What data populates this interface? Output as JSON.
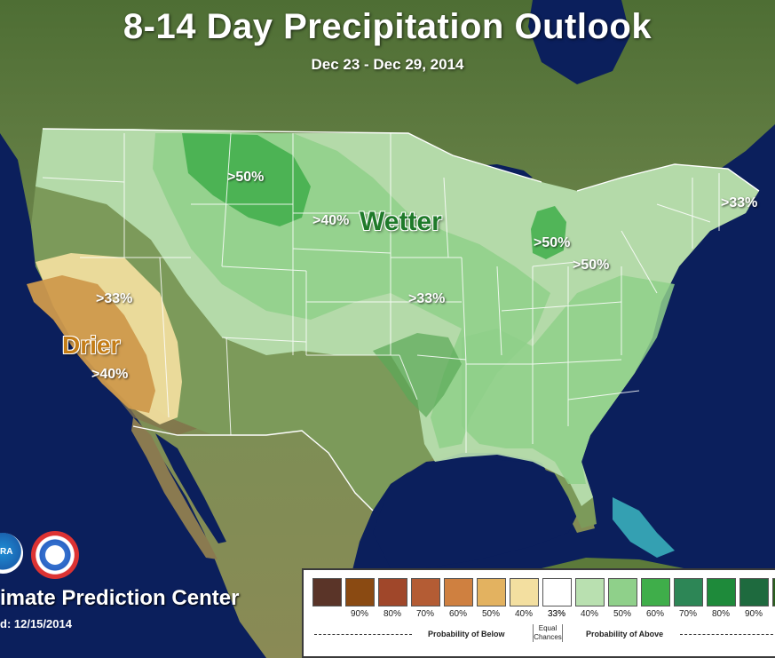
{
  "title": "8-14 Day Precipitation Outlook",
  "subtitle": "Dec 23 - Dec 29, 2014",
  "labels": {
    "wetter": "Wetter",
    "drier": "Drier",
    "nw_50": ">50%",
    "central_40": ">40%",
    "ne_33": ">33%",
    "mi_50": ">50%",
    "lakes_50": ">50%",
    "mid_33": ">33%",
    "ca_33": ">33%",
    "ca_40": ">40%"
  },
  "footer": {
    "center": "imate Prediction Center",
    "issued": "d: 12/15/2014",
    "logo_left": "RA"
  },
  "legend": {
    "below_ticks": [
      "90%",
      "80%",
      "70%",
      "60%",
      "50%",
      "40%",
      "33%"
    ],
    "above_ticks": [
      "33%",
      "40%",
      "50%",
      "60%",
      "70%",
      "80%",
      "90%"
    ],
    "below_label": "Probability of Below",
    "equal_label": "Equal Chances",
    "above_label": "Probability of Above",
    "below_colors": [
      "#5a3428",
      "#8a4a12",
      "#a0472a",
      "#b45c34",
      "#cf8040",
      "#e3b260",
      "#f3dfa0"
    ],
    "equal_color": "#ffffff",
    "above_colors": [
      "#b9e0b0",
      "#8fd08a",
      "#3fae4a",
      "#2d8656",
      "#1e8a3a",
      "#1e6a3e",
      "#2a5e1e"
    ]
  },
  "colors": {
    "ocean": "#0b1f5c",
    "land": "#6f8a4e",
    "wet_33": "#b9e0b0",
    "wet_40": "#8fd08a",
    "wet_50": "#3fae4a",
    "dry_33": "#f3dfa0",
    "dry_40": "#cf9a4c"
  }
}
